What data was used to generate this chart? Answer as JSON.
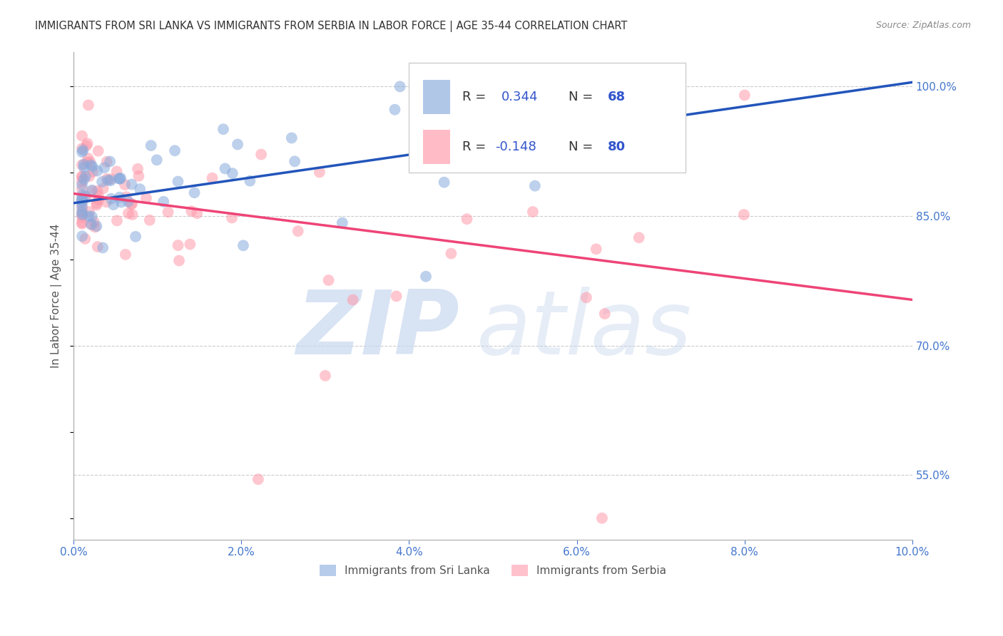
{
  "title": "IMMIGRANTS FROM SRI LANKA VS IMMIGRANTS FROM SERBIA IN LABOR FORCE | AGE 35-44 CORRELATION CHART",
  "source": "Source: ZipAtlas.com",
  "ylabel": "In Labor Force | Age 35-44",
  "xlim": [
    0.0,
    0.1
  ],
  "ylim": [
    0.475,
    1.04
  ],
  "xtick_labels": [
    "0.0%",
    "2.0%",
    "4.0%",
    "6.0%",
    "8.0%",
    "10.0%"
  ],
  "xtick_vals": [
    0.0,
    0.02,
    0.04,
    0.06,
    0.08,
    0.1
  ],
  "ytick_labels": [
    "55.0%",
    "70.0%",
    "85.0%",
    "100.0%"
  ],
  "ytick_vals": [
    0.55,
    0.7,
    0.85,
    1.0
  ],
  "grid_color": "#cccccc",
  "bg_color": "#ffffff",
  "sri_lanka_dot_color": "#88aadd",
  "serbia_dot_color": "#ff99aa",
  "sri_lanka_line_color": "#2255bb",
  "serbia_line_color": "#ee4477",
  "tick_color": "#4477cc",
  "label_color": "#555555",
  "title_color": "#333333",
  "source_color": "#888888",
  "legend_text_dark": "#333333",
  "legend_val_color": "#3355cc",
  "watermark_color": "#c8d8ee",
  "sl_line_x0": 0.0,
  "sl_line_y0": 0.865,
  "sl_line_x1": 0.1,
  "sl_line_y1": 1.005,
  "sr_line_x0": 0.0,
  "sr_line_y0": 0.876,
  "sr_line_x1": 0.1,
  "sr_line_y1": 0.753
}
